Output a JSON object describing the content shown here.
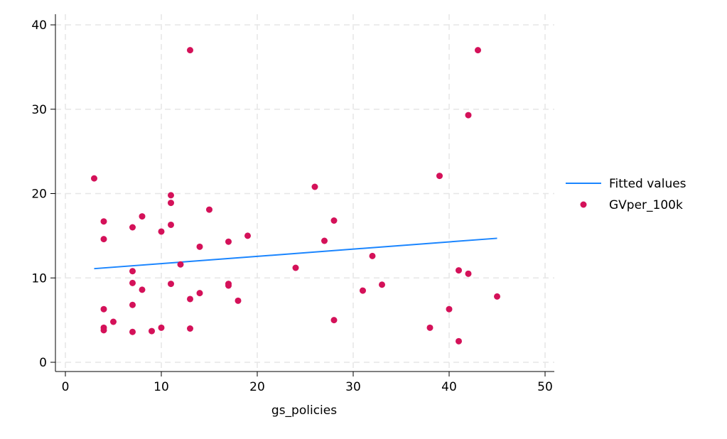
{
  "chart_data": {
    "type": "scatter",
    "title": "",
    "xlabel": "gs_policies",
    "ylabel": "",
    "xlim": [
      0,
      50
    ],
    "ylim": [
      0,
      40
    ],
    "xticks": [
      0,
      10,
      20,
      30,
      40,
      50
    ],
    "yticks": [
      0,
      10,
      20,
      30,
      40
    ],
    "xtick_labels": [
      "0",
      "10",
      "20",
      "30",
      "40",
      "50"
    ],
    "ytick_labels": [
      "0",
      "10",
      "20",
      "30",
      "40"
    ],
    "grid": true,
    "legend_position": "right",
    "colors": {
      "fit": "#1a85ff",
      "points": "#d41159"
    },
    "series": [
      {
        "name": "Fitted values",
        "type": "line",
        "x": [
          3,
          45
        ],
        "y": [
          11.1,
          14.7
        ]
      },
      {
        "name": "GVper_100k",
        "type": "scatter",
        "points": [
          [
            3,
            21.8
          ],
          [
            4,
            16.7
          ],
          [
            4,
            14.6
          ],
          [
            4,
            6.3
          ],
          [
            4,
            4.1
          ],
          [
            4,
            3.8
          ],
          [
            5,
            4.8
          ],
          [
            7,
            16
          ],
          [
            7,
            10.8
          ],
          [
            7,
            9.4
          ],
          [
            7,
            6.8
          ],
          [
            7,
            3.6
          ],
          [
            8,
            17.3
          ],
          [
            8,
            8.6
          ],
          [
            9,
            3.7
          ],
          [
            10,
            15.5
          ],
          [
            10,
            4.1
          ],
          [
            11,
            19.8
          ],
          [
            11,
            18.9
          ],
          [
            11,
            16.3
          ],
          [
            11,
            9.3
          ],
          [
            12,
            11.6
          ],
          [
            13,
            37
          ],
          [
            13,
            7.5
          ],
          [
            13,
            4
          ],
          [
            14,
            13.7
          ],
          [
            14,
            8.2
          ],
          [
            15,
            18.1
          ],
          [
            17,
            14.3
          ],
          [
            17,
            9.3
          ],
          [
            17,
            9.1
          ],
          [
            18,
            7.3
          ],
          [
            19,
            15
          ],
          [
            24,
            11.2
          ],
          [
            26,
            20.8
          ],
          [
            27,
            14.4
          ],
          [
            28,
            16.8
          ],
          [
            28,
            5
          ],
          [
            31,
            8.5
          ],
          [
            32,
            12.6
          ],
          [
            33,
            9.2
          ],
          [
            38,
            4.1
          ],
          [
            39,
            22.1
          ],
          [
            40,
            6.3
          ],
          [
            41,
            10.9
          ],
          [
            41,
            2.5
          ],
          [
            42,
            29.3
          ],
          [
            42,
            10.5
          ],
          [
            43,
            37
          ],
          [
            45,
            7.8
          ]
        ]
      }
    ]
  }
}
